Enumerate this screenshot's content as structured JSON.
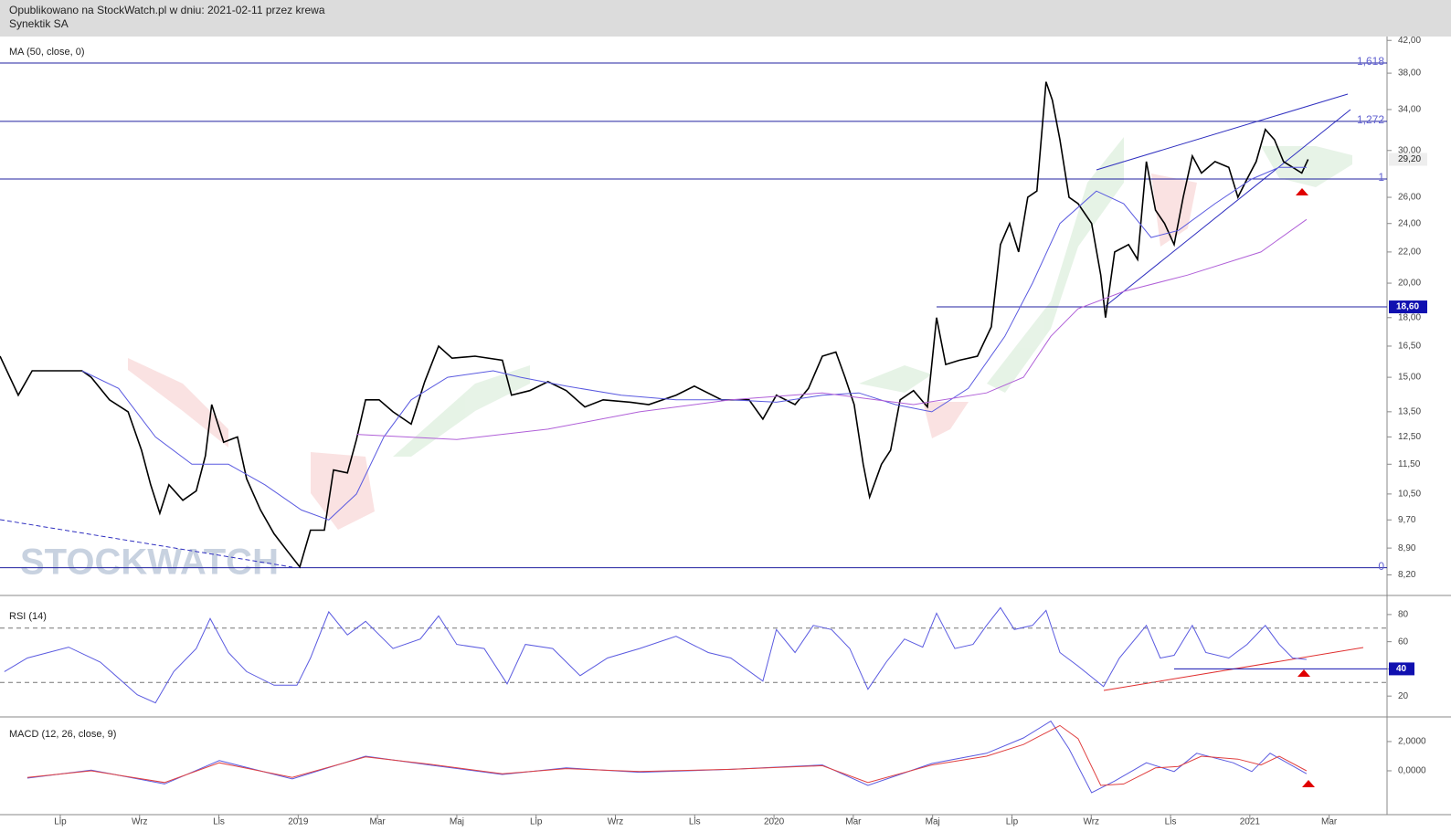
{
  "header": {
    "line1": "Opublikowano na StockWatch.pl w dniu: 2021-02-11 przez krewa",
    "line2": "Synektik SA"
  },
  "watermark": "STOCKWATCH",
  "chart_data": [
    {
      "type": "line",
      "title": "MA (50, close, 0)",
      "log_scale": true,
      "xlim": [
        -1.52,
        33.46
      ],
      "ylim": [
        7.7,
        42.5
      ],
      "yticks": [
        {
          "value": 42,
          "label": "42,00"
        },
        {
          "value": 38,
          "label": "38,00"
        },
        {
          "value": 34,
          "label": "34,00"
        },
        {
          "value": 30,
          "label": "30,00"
        },
        {
          "value": 26,
          "label": "26,00"
        },
        {
          "value": 24,
          "label": "24,00"
        },
        {
          "value": 22,
          "label": "22,00"
        },
        {
          "value": 20,
          "label": "20,00"
        },
        {
          "value": 18,
          "label": "18,00"
        },
        {
          "value": 16.5,
          "label": "16,50"
        },
        {
          "value": 15,
          "label": "15,00"
        },
        {
          "value": 13.5,
          "label": "13,50"
        },
        {
          "value": 12.5,
          "label": "12,50"
        },
        {
          "value": 11.5,
          "label": "11,50"
        },
        {
          "value": 10.5,
          "label": "10,50"
        },
        {
          "value": 9.7,
          "label": "9,70"
        },
        {
          "value": 8.9,
          "label": "8,90"
        },
        {
          "value": 8.2,
          "label": "8,20"
        }
      ],
      "levels": [
        {
          "value": 39.2,
          "label": "1,618"
        },
        {
          "value": 32.8,
          "label": "1,272"
        },
        {
          "value": 27.5,
          "label": "1"
        },
        {
          "value": 8.38,
          "label": "0"
        }
      ],
      "support": {
        "value": 18.6,
        "label": "18,60"
      },
      "last_price": {
        "value": 29.2,
        "label": "29,20"
      },
      "series": [
        {
          "color": "#000000",
          "width": 1.6,
          "x": [
            -1.52,
            -1.06,
            -0.71,
            0.55,
            0.78,
            1.24,
            1.71,
            2.05,
            2.28,
            2.51,
            2.74,
            3.09,
            3.43,
            3.66,
            3.82,
            4.12,
            4.47,
            4.7,
            5.05,
            5.39,
            5.74,
            6.04,
            6.31,
            6.66,
            6.89,
            7.24,
            7.47,
            7.7,
            8.04,
            8.39,
            8.85,
            9.19,
            9.54,
            9.88,
            10.46,
            11.15,
            11.38,
            11.84,
            12.3,
            12.76,
            13.23,
            13.69,
            14.38,
            14.84,
            15.53,
            15.99,
            16.68,
            17.37,
            17.72,
            18.06,
            18.53,
            18.87,
            19.22,
            19.56,
            19.79,
            20.02,
            20.25,
            20.41,
            20.71,
            20.94,
            21.18,
            21.52,
            21.87,
            22.1,
            22.33,
            22.67,
            23.13,
            23.48,
            23.71,
            23.94,
            24.17,
            24.4,
            24.63,
            24.86,
            25.02,
            25.21,
            25.44,
            25.67,
            26.01,
            26.24,
            26.36,
            26.59,
            26.94,
            27.17,
            27.39,
            27.62,
            27.85,
            28.09,
            28.32,
            28.55,
            28.78,
            29.12,
            29.47,
            29.7,
            29.93,
            30.16,
            30.39,
            30.62,
            30.85,
            31.08,
            31.31,
            31.47
          ],
          "values": [
            16.0,
            14.2,
            15.3,
            15.3,
            15.0,
            14.0,
            13.5,
            12.0,
            10.8,
            9.9,
            10.8,
            10.3,
            10.6,
            11.8,
            13.8,
            12.3,
            12.5,
            11.0,
            10.0,
            9.3,
            8.8,
            8.4,
            9.4,
            9.4,
            11.3,
            11.2,
            12.4,
            14.0,
            14.0,
            13.5,
            13.0,
            14.8,
            16.5,
            15.9,
            16.0,
            15.8,
            14.2,
            14.4,
            14.8,
            14.4,
            13.7,
            14.0,
            13.9,
            13.8,
            14.2,
            14.6,
            14.0,
            14.0,
            13.2,
            14.2,
            13.8,
            14.5,
            16.0,
            16.2,
            15.0,
            13.8,
            11.5,
            10.4,
            11.5,
            12.0,
            14.0,
            14.4,
            13.7,
            18.0,
            15.6,
            15.8,
            16.0,
            17.5,
            22.5,
            24.0,
            22.0,
            26.0,
            26.5,
            37.0,
            35.0,
            31.0,
            26.0,
            25.5,
            24.0,
            20.5,
            18.0,
            22.0,
            22.5,
            21.5,
            29.0,
            25.0,
            24.0,
            22.5,
            26.0,
            29.5,
            28.0,
            29.0,
            28.5,
            26.0,
            27.5,
            29.0,
            32.0,
            31.0,
            29.0,
            28.5,
            28.0,
            29.2
          ]
        },
        {
          "name": "MA (50, close, 0)",
          "color": "#5a5ae0",
          "width": 1,
          "x": [
            0.55,
            1.47,
            2.4,
            3.32,
            4.24,
            5.16,
            6.08,
            6.77,
            7.47,
            8.16,
            8.85,
            9.77,
            10.92,
            11.61,
            12.76,
            14.15,
            15.53,
            16.91,
            18.06,
            19.22,
            20.14,
            21.06,
            21.98,
            22.9,
            23.82,
            24.52,
            25.21,
            26.13,
            26.82,
            27.51,
            28.2,
            29.12,
            30.05,
            30.74,
            31.43
          ],
          "values": [
            15.3,
            14.5,
            12.5,
            11.5,
            11.5,
            10.8,
            10.0,
            9.7,
            10.5,
            12.5,
            14.0,
            15.0,
            15.3,
            15.0,
            14.6,
            14.2,
            14.0,
            14.0,
            13.9,
            14.2,
            14.3,
            13.8,
            13.5,
            14.5,
            17.0,
            20.0,
            24.0,
            26.5,
            25.5,
            23.0,
            23.5,
            25.5,
            27.5,
            28.5,
            28.5
          ]
        },
        {
          "color": "#b060d8",
          "width": 1,
          "x": [
            7.47,
            10.0,
            12.3,
            14.61,
            16.91,
            19.22,
            21.52,
            23.36,
            24.29,
            24.98,
            25.67,
            26.82,
            28.43,
            30.28,
            31.43
          ],
          "values": [
            12.6,
            12.4,
            12.8,
            13.5,
            14.0,
            14.3,
            13.8,
            14.3,
            15.0,
            17.0,
            18.5,
            19.5,
            20.5,
            22.0,
            24.3
          ]
        }
      ]
    },
    {
      "type": "line",
      "title": "RSI (14)",
      "xlim": [
        -1.52,
        33.46
      ],
      "ylim": [
        6,
        90
      ],
      "yticks": [
        80,
        60,
        40,
        20
      ],
      "bands": [
        70,
        30
      ],
      "level": {
        "value": 40,
        "label": "40"
      },
      "series": [
        {
          "color": "#5a5ae0",
          "width": 1,
          "x": [
            -1.41,
            -0.83,
            0.21,
            1.01,
            1.94,
            2.4,
            2.86,
            3.43,
            3.78,
            4.24,
            4.7,
            5.39,
            5.97,
            6.31,
            6.77,
            7.24,
            7.7,
            8.39,
            9.08,
            9.54,
            10.0,
            10.69,
            11.27,
            11.73,
            12.42,
            13.11,
            13.8,
            14.61,
            15.53,
            16.34,
            16.91,
            17.72,
            18.06,
            18.53,
            18.99,
            19.45,
            19.91,
            20.37,
            20.83,
            21.29,
            21.75,
            22.1,
            22.56,
            23.02,
            23.36,
            23.71,
            24.06,
            24.52,
            24.86,
            25.21,
            25.67,
            26.31,
            26.71,
            27.39,
            27.74,
            28.09,
            28.55,
            28.89,
            29.47,
            29.93,
            30.39,
            30.74,
            31.08,
            31.43
          ],
          "values": [
            38,
            48,
            56,
            45,
            21,
            15,
            38,
            55,
            77,
            52,
            38,
            28,
            28,
            48,
            82,
            65,
            75,
            55,
            62,
            79,
            58,
            55,
            29,
            58,
            55,
            35,
            48,
            55,
            64,
            52,
            48,
            31,
            69,
            52,
            72,
            69,
            55,
            25,
            45,
            62,
            56,
            81,
            55,
            58,
            72,
            85,
            69,
            72,
            83,
            52,
            42,
            27,
            48,
            72,
            48,
            50,
            72,
            52,
            48,
            58,
            72,
            58,
            48,
            47
          ]
        }
      ]
    },
    {
      "type": "line",
      "title": "MACD (12, 26, close, 9)",
      "xlim": [
        -1.52,
        33.46
      ],
      "ylim": [
        -2.875,
        3.56
      ],
      "yticks": [
        {
          "value": 2,
          "label": "2,0000"
        },
        {
          "value": 0,
          "label": "0,0000"
        }
      ],
      "xticks": [
        {
          "value": 0,
          "label": "Lip"
        },
        {
          "value": 2,
          "label": "Wrz"
        },
        {
          "value": 4,
          "label": "Lis"
        },
        {
          "value": 6,
          "label": "2019"
        },
        {
          "value": 8,
          "label": "Mar"
        },
        {
          "value": 10,
          "label": "Maj"
        },
        {
          "value": 12,
          "label": "Lip"
        },
        {
          "value": 14,
          "label": "Wrz"
        },
        {
          "value": 16,
          "label": "Lis"
        },
        {
          "value": 18,
          "label": "2020"
        },
        {
          "value": 20,
          "label": "Mar"
        },
        {
          "value": 22,
          "label": "Maj"
        },
        {
          "value": 24,
          "label": "Lip"
        },
        {
          "value": 26,
          "label": "Wrz"
        },
        {
          "value": 28,
          "label": "Lis"
        },
        {
          "value": 30,
          "label": "2021"
        },
        {
          "value": 32,
          "label": "Mar"
        }
      ],
      "series": [
        {
          "color": "#5a5ae0",
          "width": 1,
          "x": [
            -0.83,
            0.78,
            2.63,
            4.01,
            5.85,
            7.7,
            9.31,
            11.15,
            12.76,
            14.61,
            16.91,
            19.22,
            20.37,
            21.98,
            23.36,
            24.29,
            24.98,
            25.44,
            26.01,
            26.59,
            27.39,
            28.09,
            28.66,
            29.58,
            30.05,
            30.51,
            31.43
          ],
          "values": [
            -0.5,
            0.05,
            -0.9,
            0.7,
            -0.55,
            1.0,
            0.4,
            -0.25,
            0.2,
            -0.1,
            0.1,
            0.4,
            -1.0,
            0.5,
            1.2,
            2.25,
            3.4,
            1.5,
            -1.5,
            -0.7,
            0.55,
            -0.05,
            1.2,
            0.55,
            -0.05,
            1.2,
            -0.2
          ]
        },
        {
          "color": "#e04040",
          "width": 1,
          "x": [
            -0.83,
            0.78,
            2.63,
            4.01,
            5.85,
            7.7,
            9.31,
            11.15,
            12.76,
            14.61,
            16.91,
            19.22,
            20.37,
            21.98,
            23.36,
            24.29,
            25.21,
            25.67,
            26.24,
            26.82,
            27.62,
            28.2,
            28.78,
            29.7,
            30.28,
            30.74,
            31.43
          ],
          "values": [
            -0.45,
            0.0,
            -0.8,
            0.55,
            -0.45,
            0.95,
            0.45,
            -0.2,
            0.15,
            -0.05,
            0.1,
            0.35,
            -0.8,
            0.4,
            1.0,
            1.8,
            3.1,
            2.2,
            -1.0,
            -0.9,
            0.2,
            0.3,
            1.0,
            0.8,
            0.4,
            1.0,
            0.0
          ]
        }
      ]
    }
  ]
}
